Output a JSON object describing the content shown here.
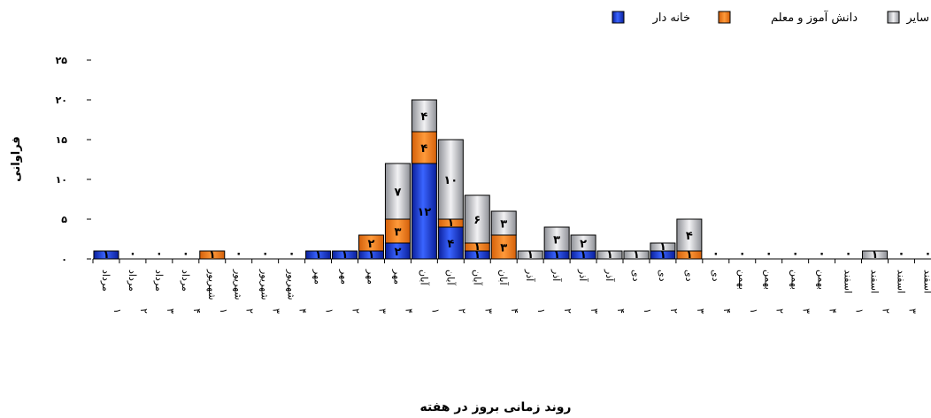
{
  "chart_data": {
    "type": "bar",
    "stacked": true,
    "title": "",
    "xlabel": "روند زمانی بروز در هفته",
    "ylabel": "فراوانی",
    "ylim": [
      0,
      25
    ],
    "yticks": [
      "0",
      "5",
      "10",
      "15",
      "20",
      "25"
    ],
    "grid": false,
    "legend_position": "top-right",
    "categories": [
      [
        "مرداد",
        "1"
      ],
      [
        "مرداد",
        "2"
      ],
      [
        "مرداد",
        "3"
      ],
      [
        "مرداد",
        "4"
      ],
      [
        "شهریور",
        "1"
      ],
      [
        "شهریور",
        "2"
      ],
      [
        "شهریور",
        "3"
      ],
      [
        "شهریور",
        "4"
      ],
      [
        "مهر",
        "1"
      ],
      [
        "مهر",
        "2"
      ],
      [
        "مهر",
        "3"
      ],
      [
        "مهر",
        "4"
      ],
      [
        "آبان",
        "1"
      ],
      [
        "آبان",
        "2"
      ],
      [
        "آبان",
        "3"
      ],
      [
        "آبان",
        "4"
      ],
      [
        "آذر",
        "1"
      ],
      [
        "آذر",
        "2"
      ],
      [
        "آذر",
        "3"
      ],
      [
        "آذر",
        "4"
      ],
      [
        "دی",
        "1"
      ],
      [
        "دی",
        "2"
      ],
      [
        "دی",
        "3"
      ],
      [
        "دی",
        "4"
      ],
      [
        "بهمن",
        "1"
      ],
      [
        "بهمن",
        "2"
      ],
      [
        "بهمن",
        "3"
      ],
      [
        "بهمن",
        "4"
      ],
      [
        "اسفند",
        "1"
      ],
      [
        "اسفند",
        "2"
      ],
      [
        "اسفند",
        "3"
      ],
      [
        "اسفند",
        "4"
      ]
    ],
    "series": [
      {
        "name": "خانه دار",
        "color": "#1f3fcf",
        "values": [
          1,
          0,
          0,
          0,
          0,
          0,
          0,
          0,
          1,
          1,
          1,
          2,
          12,
          4,
          1,
          0,
          0,
          1,
          1,
          0,
          0,
          1,
          0,
          0,
          0,
          0,
          0,
          0,
          0,
          0,
          0,
          0
        ]
      },
      {
        "name": "دانش آموز و معلم",
        "color": "#e8730c",
        "values": [
          0,
          0,
          0,
          0,
          1,
          0,
          0,
          0,
          0,
          0,
          2,
          3,
          4,
          1,
          1,
          3,
          0,
          0,
          0,
          0,
          0,
          0,
          1,
          0,
          0,
          0,
          0,
          0,
          0,
          0,
          0,
          0
        ]
      },
      {
        "name": "سایر",
        "color": "#c4c6cc",
        "values": [
          0,
          0,
          0,
          0,
          0,
          0,
          0,
          0,
          0,
          0,
          0,
          7,
          4,
          10,
          6,
          3,
          1,
          3,
          2,
          1,
          1,
          1,
          4,
          0,
          0,
          0,
          0,
          0,
          0,
          1,
          0,
          0
        ]
      }
    ]
  }
}
